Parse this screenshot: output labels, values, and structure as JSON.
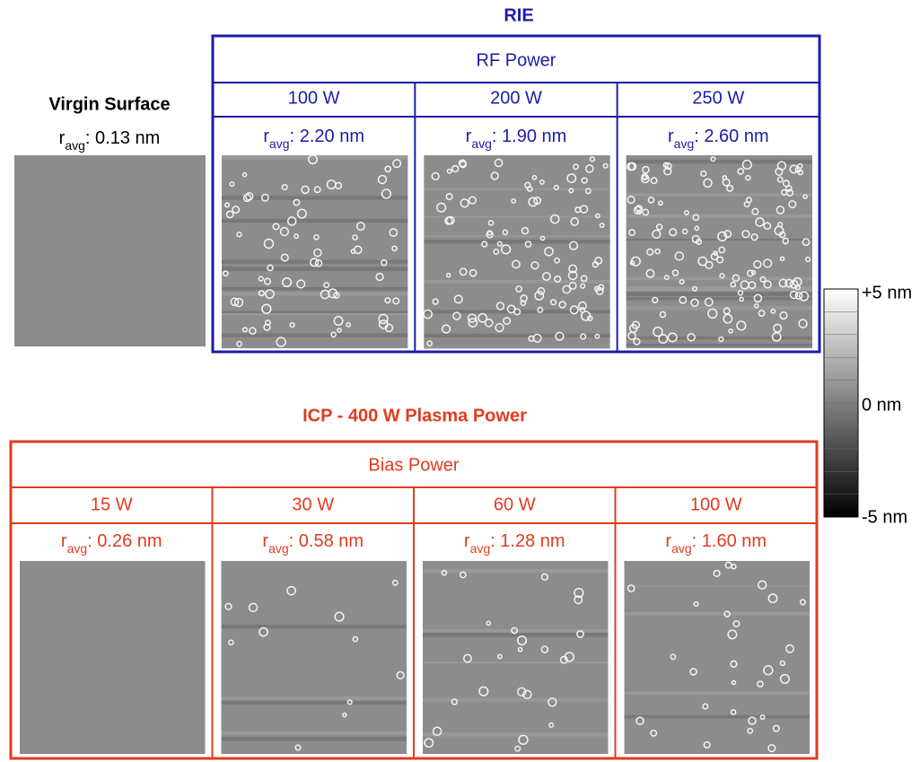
{
  "virgin": {
    "title": "Virgin Surface",
    "r_value": ": 0.13 nm"
  },
  "roughness_label": {
    "symbol": "r",
    "subscript": "avg"
  },
  "rie": {
    "title": "RIE",
    "group_label": "RF Power",
    "panels": [
      {
        "power": "100 W",
        "r_value": ": 2.20 nm"
      },
      {
        "power": "200 W",
        "r_value": ": 1.90 nm"
      },
      {
        "power": "250 W",
        "r_value": ": 2.60 nm"
      }
    ]
  },
  "icp": {
    "title": "ICP - 400 W Plasma Power",
    "group_label": "Bias Power",
    "panels": [
      {
        "power": "15 W",
        "r_value": ": 0.26 nm"
      },
      {
        "power": "30 W",
        "r_value": ": 0.58 nm"
      },
      {
        "power": "60 W",
        "r_value": ": 1.28 nm"
      },
      {
        "power": "100 W",
        "r_value": ": 1.60 nm"
      }
    ]
  },
  "colorbar": {
    "labels": [
      "+5 nm",
      "0 nm",
      "-5 nm"
    ]
  }
}
